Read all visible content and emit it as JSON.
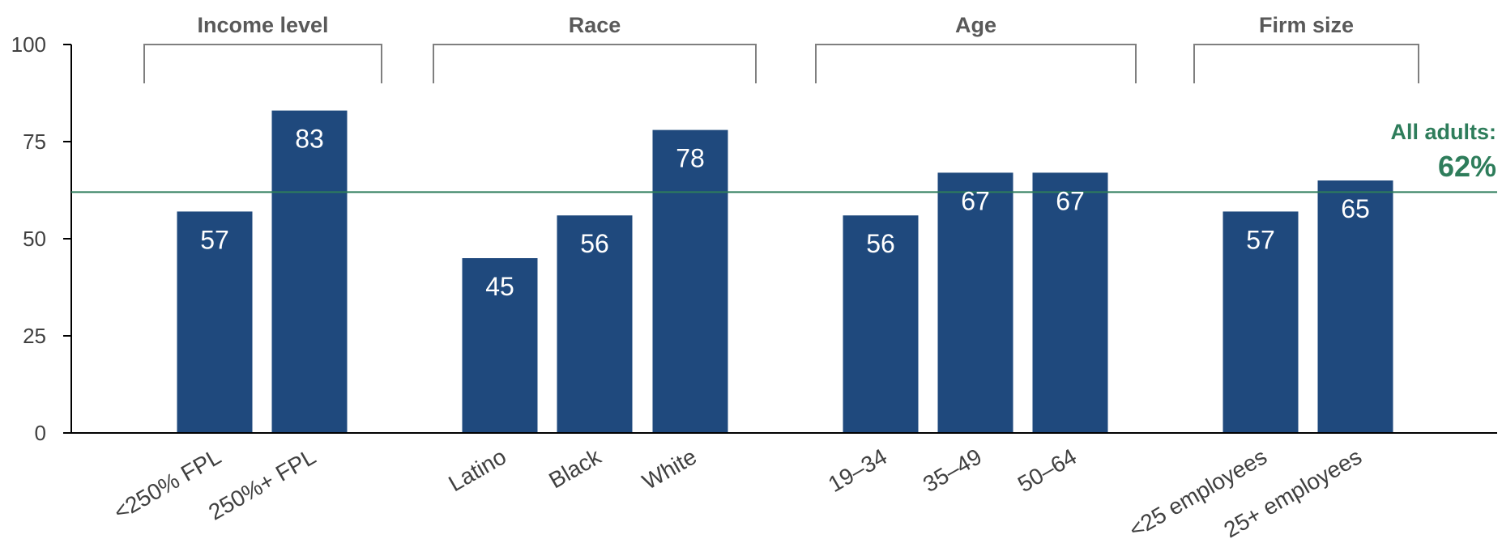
{
  "chart_data": {
    "type": "bar",
    "categories": [
      "<250% FPL",
      "250%+ FPL",
      "Latino",
      "Black",
      "White",
      "19–34",
      "35–49",
      "50–64",
      "<25 employees",
      "25+ employees"
    ],
    "values": [
      57,
      83,
      45,
      56,
      78,
      56,
      67,
      67,
      57,
      65
    ],
    "value_labels": [
      "57",
      "83",
      "45",
      "56",
      "78",
      "56",
      "67",
      "67",
      "57",
      "65"
    ],
    "groups": [
      {
        "label": "Income level",
        "categories": [
          "<250% FPL",
          "250%+ FPL"
        ]
      },
      {
        "label": "Race",
        "categories": [
          "Latino",
          "Black",
          "White"
        ]
      },
      {
        "label": "Age",
        "categories": [
          "19–34",
          "35–49",
          "50–64"
        ]
      },
      {
        "label": "Firm size",
        "categories": [
          "<25 employees",
          "25+ employees"
        ]
      }
    ],
    "yticks": [
      "0",
      "25",
      "50",
      "75",
      "100"
    ],
    "ylim": [
      0,
      100
    ],
    "reference_line": {
      "value": 62,
      "label": "All adults:",
      "value_label": "62%"
    },
    "grid": false,
    "colors": {
      "bar": "#1F497D",
      "reference": "#2E7D5B",
      "axis": "#000000",
      "bracket": "#7F7F7F"
    }
  }
}
